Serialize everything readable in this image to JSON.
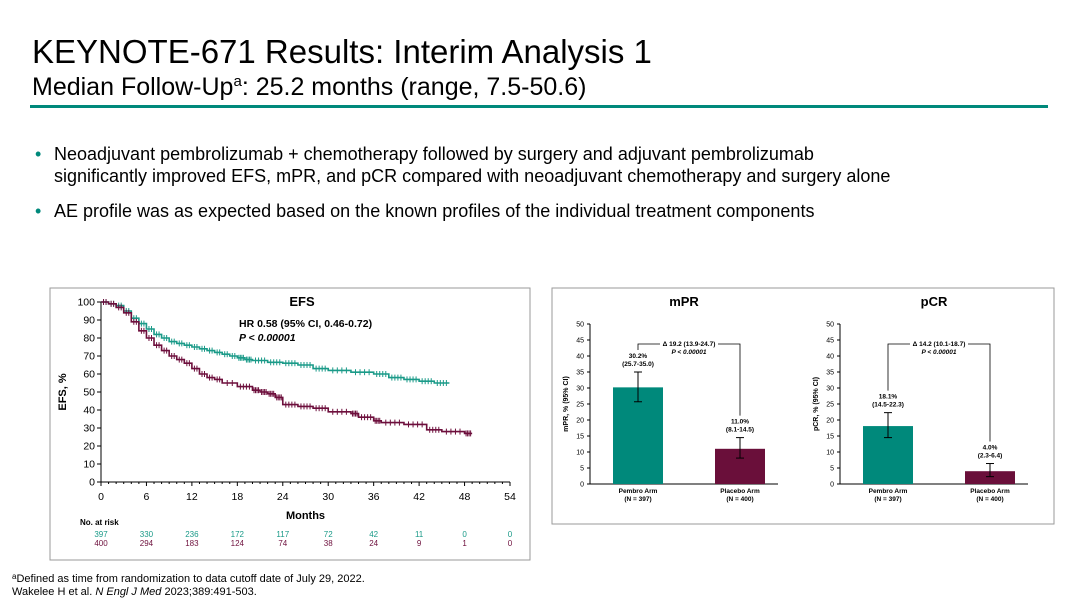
{
  "slide": {
    "title": "KEYNOTE-671 Results: Interim Analysis 1",
    "subtitle_pre": "Median Follow-Up",
    "subtitle_sup": "a",
    "subtitle_post": ": 25.2 months (range, 7.5-50.6)",
    "bullets": [
      {
        "lines": [
          "Neoadjuvant pembrolizumab + chemotherapy followed by surgery and adjuvant pembrolizumab",
          "significantly improved EFS, mPR, and pCR compared with neoadjuvant chemotherapy and surgery alone"
        ]
      },
      {
        "lines": [
          "AE profile was as expected based on the known profiles of the individual treatment components"
        ]
      }
    ],
    "footnote_sup": "a",
    "footnote": "Defined as time from randomization to data cutoff date of July 29, 2022.",
    "citation_pre": "Wakelee H et al. ",
    "citation_journal": "N Engl J Med",
    "citation_post": " 2023;389:491-503."
  },
  "colors": {
    "teal": "#1a9a88",
    "maroon": "#6d0f3c",
    "rule": "#00897b",
    "bar_teal": "#00897b",
    "bar_maroon": "#6a0f3a"
  },
  "chart_data": [
    {
      "type": "line",
      "title": "EFS",
      "xlabel": "Months",
      "ylabel": "EFS, %",
      "xlim": [
        0,
        54
      ],
      "ylim": [
        0,
        100
      ],
      "xticks": [
        0,
        6,
        12,
        18,
        24,
        30,
        36,
        42,
        48,
        54
      ],
      "yticks": [
        0,
        10,
        20,
        30,
        40,
        50,
        60,
        70,
        80,
        90,
        100
      ],
      "annotation": [
        "HR 0.58 (95% CI, 0.46-0.72)",
        "P < 0.00001"
      ],
      "series": [
        {
          "color": "#1a9a88",
          "points": [
            [
              0,
              100
            ],
            [
              1,
              99
            ],
            [
              2,
              98
            ],
            [
              3,
              95
            ],
            [
              4,
              91
            ],
            [
              5,
              88
            ],
            [
              6,
              85
            ],
            [
              7,
              82
            ],
            [
              8,
              80
            ],
            [
              9,
              78
            ],
            [
              10,
              77
            ],
            [
              11,
              76
            ],
            [
              12,
              75
            ],
            [
              13,
              74
            ],
            [
              14,
              73
            ],
            [
              15,
              72
            ],
            [
              16,
              71
            ],
            [
              17,
              70
            ],
            [
              18,
              69
            ],
            [
              19,
              68
            ],
            [
              20,
              67.5
            ],
            [
              22,
              66.5
            ],
            [
              24,
              66
            ],
            [
              26,
              65
            ],
            [
              28,
              63
            ],
            [
              30,
              62
            ],
            [
              33,
              61
            ],
            [
              36,
              60
            ],
            [
              38,
              58
            ],
            [
              40,
              57
            ],
            [
              42,
              56
            ],
            [
              44,
              55
            ],
            [
              46,
              55
            ]
          ]
        },
        {
          "color": "#6d0f3c",
          "points": [
            [
              0,
              100
            ],
            [
              1,
              99
            ],
            [
              2,
              97
            ],
            [
              3,
              94
            ],
            [
              4,
              89
            ],
            [
              5,
              84
            ],
            [
              6,
              80
            ],
            [
              7,
              76
            ],
            [
              8,
              73
            ],
            [
              9,
              70
            ],
            [
              10,
              68
            ],
            [
              11,
              66
            ],
            [
              12,
              63
            ],
            [
              13,
              60
            ],
            [
              14,
              58
            ],
            [
              15,
              57
            ],
            [
              16,
              55
            ],
            [
              18,
              53
            ],
            [
              20,
              51
            ],
            [
              21,
              50
            ],
            [
              22,
              49
            ],
            [
              23,
              47
            ],
            [
              24,
              43
            ],
            [
              26,
              42
            ],
            [
              28,
              41
            ],
            [
              30,
              39
            ],
            [
              33,
              38
            ],
            [
              34,
              36
            ],
            [
              36,
              34
            ],
            [
              37,
              33
            ],
            [
              40,
              32
            ],
            [
              43,
              29
            ],
            [
              45,
              28
            ],
            [
              48,
              27
            ],
            [
              49,
              27
            ]
          ]
        }
      ],
      "risk_table": {
        "label": "No. at risk",
        "rows": [
          {
            "color": "#1a9a88",
            "values": [
              "397",
              "330",
              "236",
              "172",
              "117",
              "72",
              "42",
              "11",
              "0",
              "0"
            ]
          },
          {
            "color": "#6d0f3c",
            "values": [
              "400",
              "294",
              "183",
              "124",
              "74",
              "38",
              "24",
              "9",
              "1",
              "0"
            ]
          }
        ]
      }
    },
    {
      "type": "bar",
      "title": "mPR",
      "ylabel": "mPR, % (95% CI)",
      "ylim": [
        0,
        50
      ],
      "yticks": [
        0,
        5,
        10,
        15,
        20,
        25,
        30,
        35,
        40,
        45,
        50
      ],
      "categories": [
        [
          "Pembro Arm",
          "(N = 397)"
        ],
        [
          "Placebo Arm",
          "(N = 400)"
        ]
      ],
      "values": [
        30.2,
        11.0
      ],
      "ci": [
        [
          25.7,
          35.0
        ],
        [
          8.1,
          14.5
        ]
      ],
      "colors": [
        "#00897b",
        "#6a0f3a"
      ],
      "value_labels": [
        [
          "30.2%",
          "(25.7-35.0)"
        ],
        [
          "11.0%",
          "(8.1-14.5)"
        ]
      ],
      "diff_label": [
        "Δ 19.2 (13.9-24.7)",
        "P < 0.00001"
      ]
    },
    {
      "type": "bar",
      "title": "pCR",
      "ylabel": "pCR, % (95% CI)",
      "ylim": [
        0,
        50
      ],
      "yticks": [
        0,
        5,
        10,
        15,
        20,
        25,
        30,
        35,
        40,
        45,
        50
      ],
      "categories": [
        [
          "Pembro Arm",
          "(N = 397)"
        ],
        [
          "Placebo Arm",
          "(N = 400)"
        ]
      ],
      "values": [
        18.1,
        4.0
      ],
      "ci": [
        [
          14.5,
          22.3
        ],
        [
          2.3,
          6.4
        ]
      ],
      "colors": [
        "#00897b",
        "#6a0f3a"
      ],
      "value_labels": [
        [
          "18.1%",
          "(14.5-22.3)"
        ],
        [
          "4.0%",
          "(2.3-6.4)"
        ]
      ],
      "diff_label": [
        "Δ 14.2 (10.1-18.7)",
        "P < 0.00001"
      ]
    }
  ]
}
